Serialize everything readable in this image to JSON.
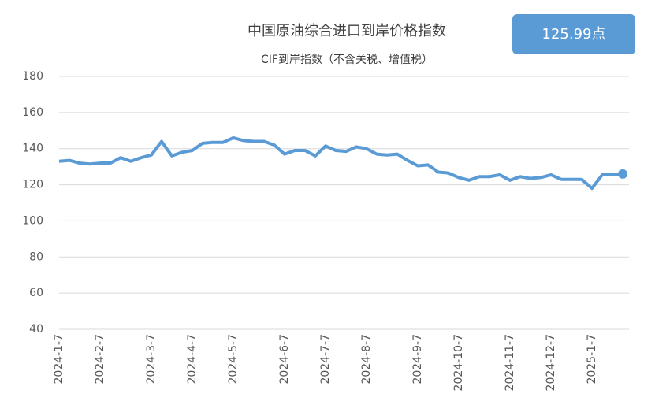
{
  "chart_data": {
    "type": "line",
    "title": "中国原油综合进口到岸价格指数",
    "subtitle": "CIF到岸指数（不含关税、增值税）",
    "badge": "125.99点",
    "categories": [
      "2024-1-7",
      null,
      null,
      null,
      "2024-2-7",
      null,
      null,
      null,
      null,
      "2024-3-7",
      null,
      null,
      null,
      "2024-4-7",
      null,
      null,
      null,
      "2024-5-7",
      null,
      null,
      null,
      null,
      "2024-6-7",
      null,
      null,
      null,
      "2024-7-7",
      null,
      null,
      null,
      "2024-8-7",
      null,
      null,
      null,
      null,
      "2024-9-7",
      null,
      null,
      null,
      "2024-10-7",
      null,
      null,
      null,
      null,
      "2024-11-7",
      null,
      null,
      null,
      "2024-12-7",
      null,
      null,
      null,
      "2025-1-7",
      null,
      null,
      null
    ],
    "series": [
      {
        "name": "CIF到岸指数",
        "color": "#5b9bd5",
        "values": [
          133,
          133.5,
          132,
          131.5,
          132,
          132,
          135,
          133,
          135,
          136.5,
          144,
          136,
          138,
          139,
          143,
          143.5,
          143.5,
          146,
          144.5,
          144,
          144,
          142,
          137,
          139,
          139,
          136,
          141.5,
          139,
          138.5,
          141,
          140,
          137,
          136.5,
          137,
          133.5,
          130.5,
          131,
          127,
          126.5,
          124,
          122.5,
          124.5,
          124.5,
          125.5,
          122.5,
          124.5,
          123.5,
          124,
          125.5,
          123,
          123,
          123,
          118,
          125.5,
          125.5,
          125.99
        ]
      }
    ],
    "ylim": [
      40,
      180
    ],
    "yticks": [
      40,
      60,
      80,
      100,
      120,
      140,
      160,
      180
    ],
    "grid": true
  }
}
